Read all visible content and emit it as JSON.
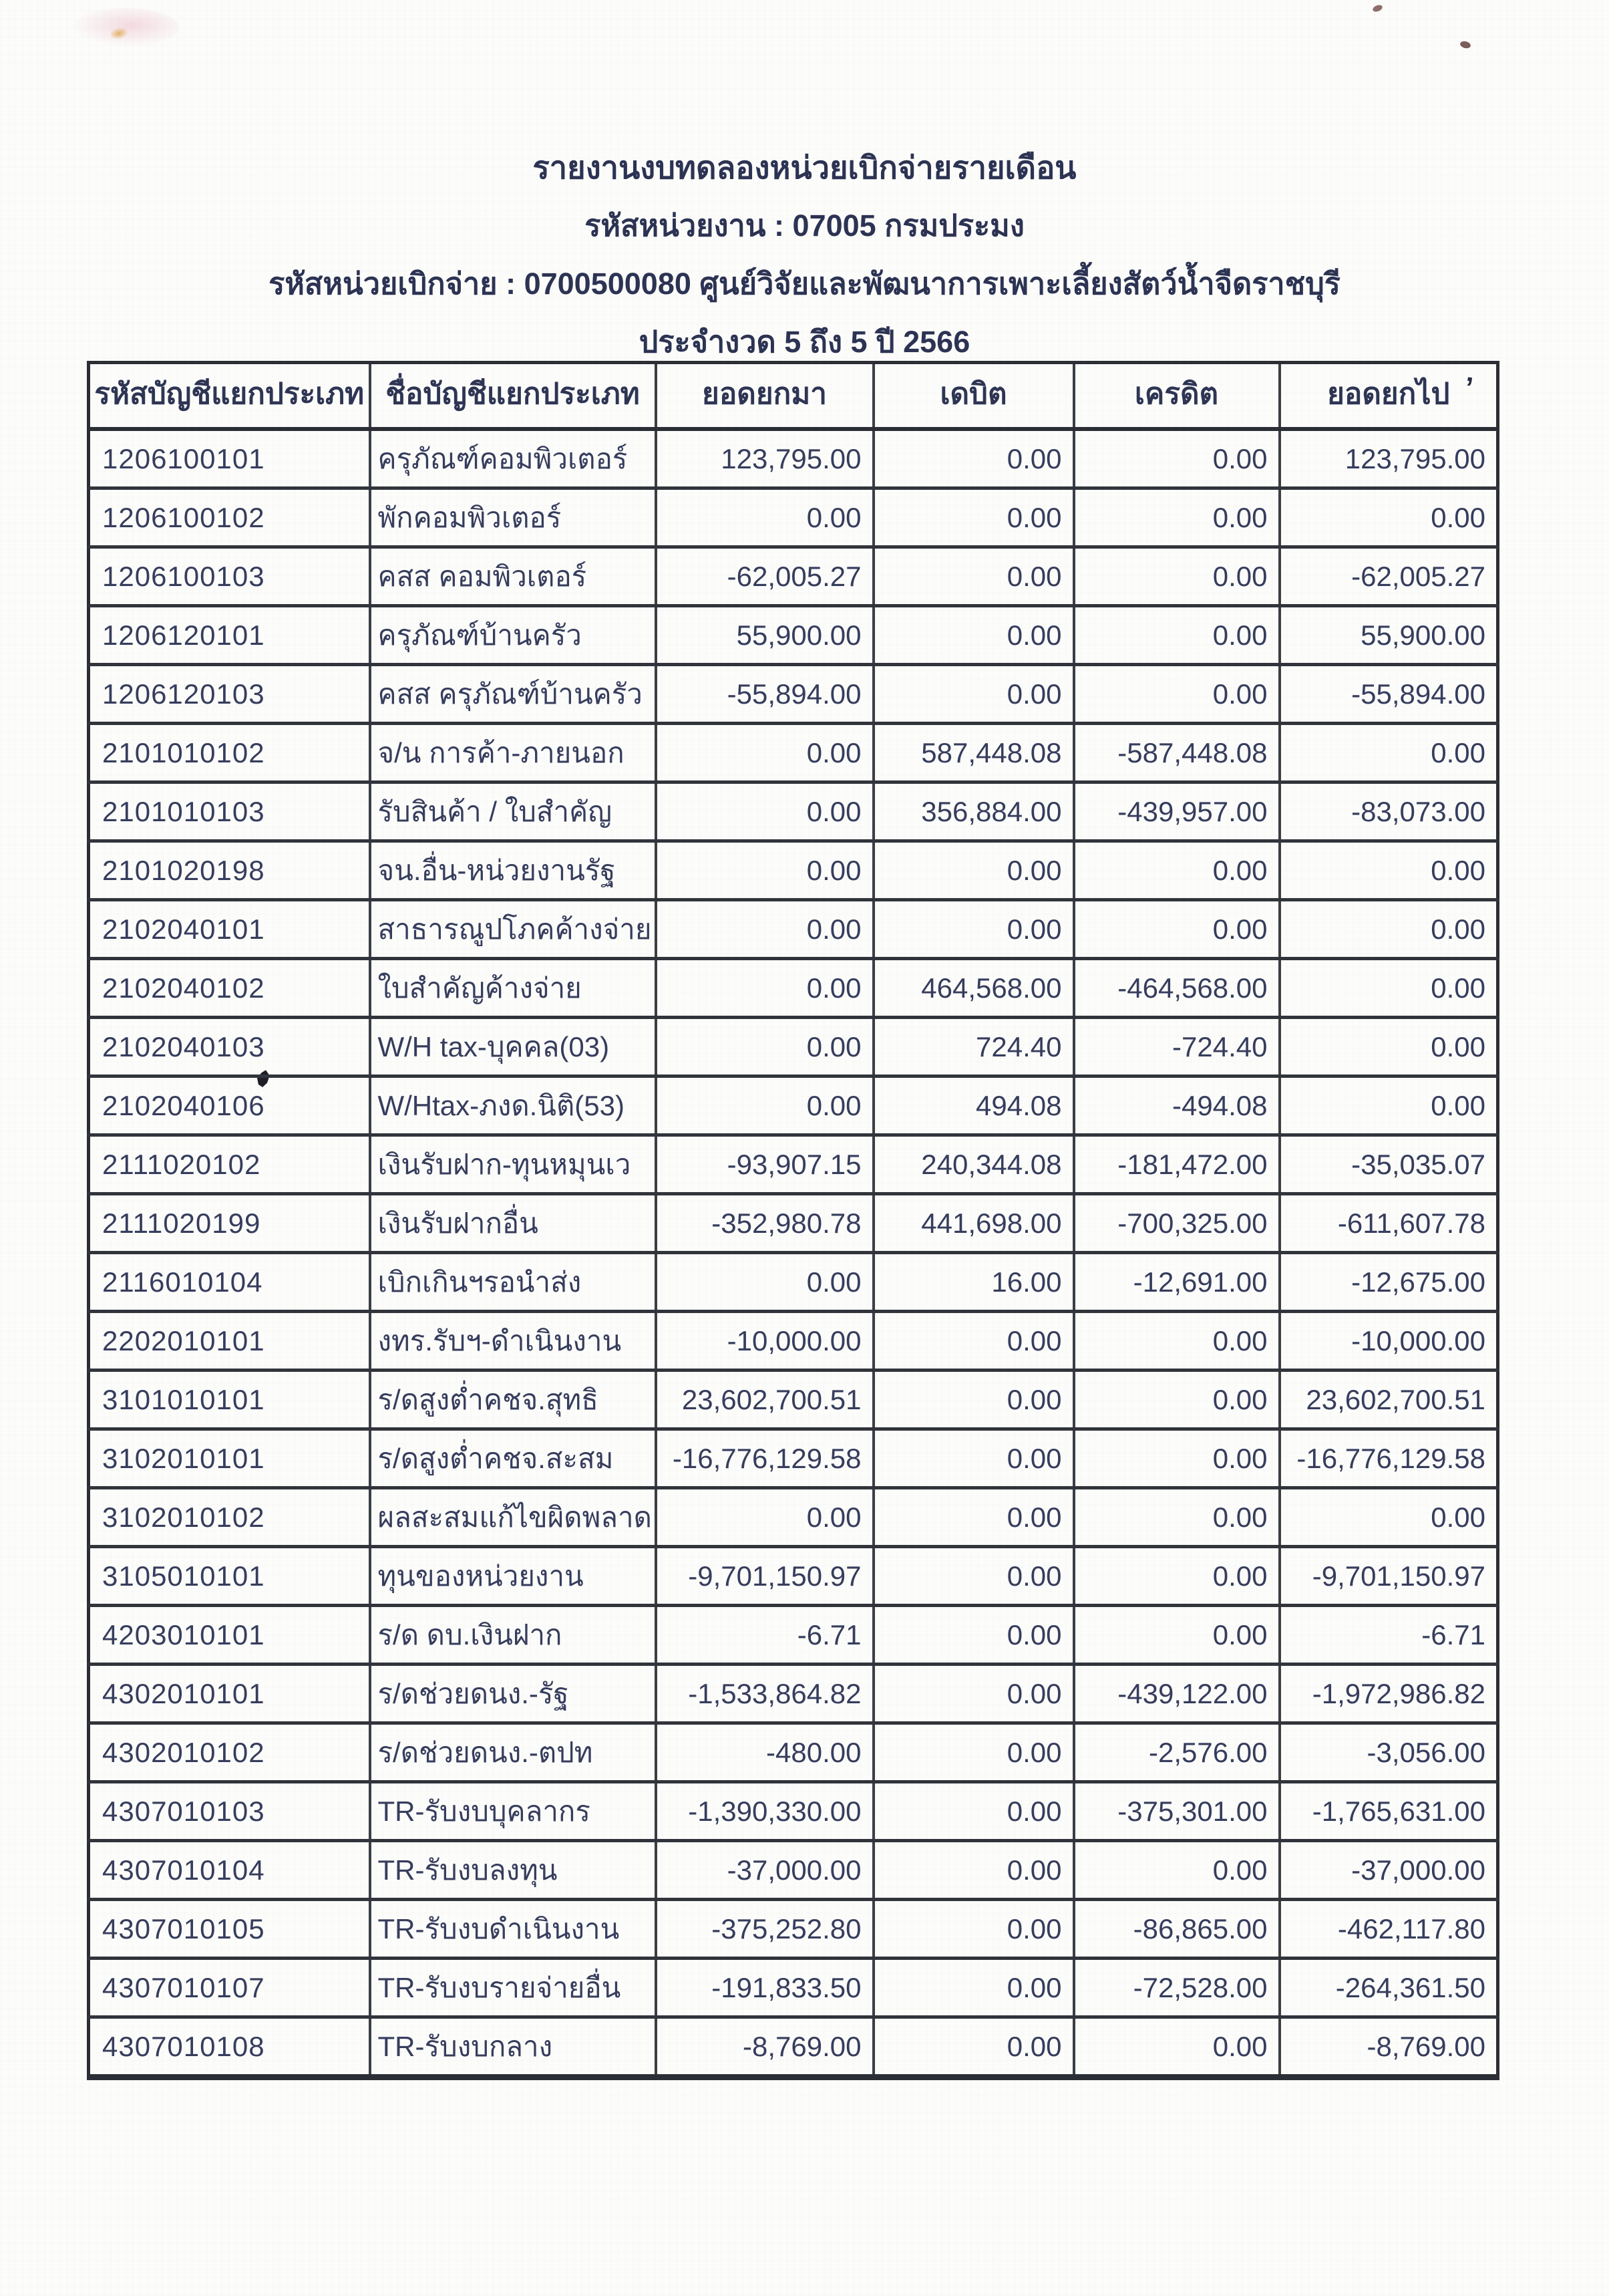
{
  "document": {
    "title": "รายงานงบทดลองหน่วยเบิกจ่ายรายเดือน",
    "agency_code_line": "รหัสหน่วยงาน : 07005 กรมประมง",
    "disbursement_unit_line": "รหัสหน่วยเบิกจ่าย : 0700500080 ศูนย์วิจัยและพัฒนาการเพาะเลี้ยงสัตว์น้ำจืดราชบุรี",
    "period_line": "ประจำงวด 5 ถึง 5 ปี 2566"
  },
  "table": {
    "columns": [
      "รหัสบัญชีแยกประเภท",
      "ชื่อบัญชีแยกประเภท",
      "ยอดยกมา",
      "เดบิต",
      "เครดิต",
      "ยอดยกไป"
    ],
    "rows": [
      [
        "1206100101",
        "ครุภัณฑ์คอมพิวเตอร์",
        "123,795.00",
        "0.00",
        "0.00",
        "123,795.00"
      ],
      [
        "1206100102",
        "พักคอมพิวเตอร์",
        "0.00",
        "0.00",
        "0.00",
        "0.00"
      ],
      [
        "1206100103",
        "คสส คอมพิวเตอร์",
        "-62,005.27",
        "0.00",
        "0.00",
        "-62,005.27"
      ],
      [
        "1206120101",
        "ครุภัณฑ์บ้านครัว",
        "55,900.00",
        "0.00",
        "0.00",
        "55,900.00"
      ],
      [
        "1206120103",
        "คสส ครุภัณฑ์บ้านครัว",
        "-55,894.00",
        "0.00",
        "0.00",
        "-55,894.00"
      ],
      [
        "2101010102",
        "จ/น การค้า-ภายนอก",
        "0.00",
        "587,448.08",
        "-587,448.08",
        "0.00"
      ],
      [
        "2101010103",
        "รับสินค้า / ใบสำคัญ",
        "0.00",
        "356,884.00",
        "-439,957.00",
        "-83,073.00"
      ],
      [
        "2101020198",
        "จน.อื่น-หน่วยงานรัฐ",
        "0.00",
        "0.00",
        "0.00",
        "0.00"
      ],
      [
        "2102040101",
        "สาธารณูปโภคค้างจ่าย",
        "0.00",
        "0.00",
        "0.00",
        "0.00"
      ],
      [
        "2102040102",
        "ใบสำคัญค้างจ่าย",
        "0.00",
        "464,568.00",
        "-464,568.00",
        "0.00"
      ],
      [
        "2102040103",
        "W/H tax-บุคคล(03)",
        "0.00",
        "724.40",
        "-724.40",
        "0.00"
      ],
      [
        "2102040106",
        "W/Htax-ภงด.นิติ(53)",
        "0.00",
        "494.08",
        "-494.08",
        "0.00"
      ],
      [
        "2111020102",
        "เงินรับฝาก-ทุนหมุนเว",
        "-93,907.15",
        "240,344.08",
        "-181,472.00",
        "-35,035.07"
      ],
      [
        "2111020199",
        "เงินรับฝากอื่น",
        "-352,980.78",
        "441,698.00",
        "-700,325.00",
        "-611,607.78"
      ],
      [
        "2116010104",
        "เบิกเกินฯรอนำส่ง",
        "0.00",
        "16.00",
        "-12,691.00",
        "-12,675.00"
      ],
      [
        "2202010101",
        "งทร.รับฯ-ดำเนินงาน",
        "-10,000.00",
        "0.00",
        "0.00",
        "-10,000.00"
      ],
      [
        "3101010101",
        "ร/ดสูงต่ำคชจ.สุทธิ",
        "23,602,700.51",
        "0.00",
        "0.00",
        "23,602,700.51"
      ],
      [
        "3102010101",
        "ร/ดสูงต่ำคชจ.สะสม",
        "-16,776,129.58",
        "0.00",
        "0.00",
        "-16,776,129.58"
      ],
      [
        "3102010102",
        "ผลสะสมแก้ไขผิดพลาด",
        "0.00",
        "0.00",
        "0.00",
        "0.00"
      ],
      [
        "3105010101",
        "ทุนของหน่วยงาน",
        "-9,701,150.97",
        "0.00",
        "0.00",
        "-9,701,150.97"
      ],
      [
        "4203010101",
        "ร/ด ดบ.เงินฝาก",
        "-6.71",
        "0.00",
        "0.00",
        "-6.71"
      ],
      [
        "4302010101",
        "ร/ดช่วยดนง.-รัฐ",
        "-1,533,864.82",
        "0.00",
        "-439,122.00",
        "-1,972,986.82"
      ],
      [
        "4302010102",
        "ร/ดช่วยดนง.-ตปท",
        "-480.00",
        "0.00",
        "-2,576.00",
        "-3,056.00"
      ],
      [
        "4307010103",
        "TR-รับงบบุคลากร",
        "-1,390,330.00",
        "0.00",
        "-375,301.00",
        "-1,765,631.00"
      ],
      [
        "4307010104",
        "TR-รับงบลงทุน",
        "-37,000.00",
        "0.00",
        "0.00",
        "-37,000.00"
      ],
      [
        "4307010105",
        "TR-รับงบดำเนินงาน",
        "-375,252.80",
        "0.00",
        "-86,865.00",
        "-462,117.80"
      ],
      [
        "4307010107",
        "TR-รับงบรายจ่ายอื่น",
        "-191,833.50",
        "0.00",
        "-72,528.00",
        "-264,361.50"
      ],
      [
        "4307010108",
        "TR-รับงบกลาง",
        "-8,769.00",
        "0.00",
        "0.00",
        "-8,769.00"
      ]
    ]
  },
  "annotations": {
    "pen_apostrophe": "’"
  },
  "colors": {
    "ink": "#2c3353",
    "grid_line": "#3a3f46",
    "paper": "#fcfcfa"
  }
}
